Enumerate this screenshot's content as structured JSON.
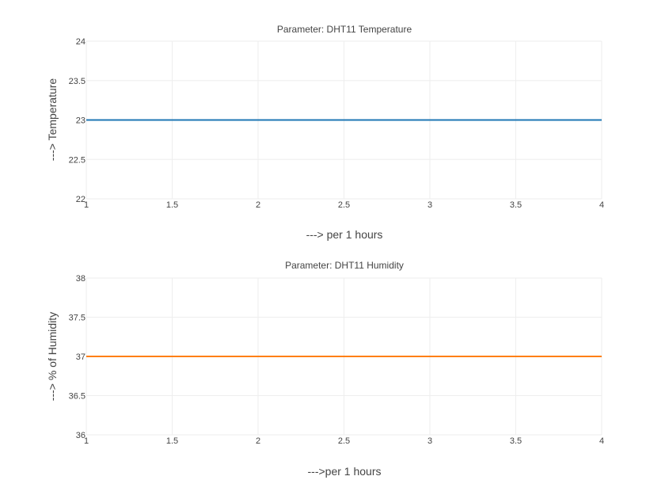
{
  "chart_data": [
    {
      "type": "line",
      "title": "Parameter: DHT11 Temperature",
      "xlabel": "---> per 1 hours",
      "ylabel": "---> Temperature",
      "xlim": [
        1,
        4
      ],
      "ylim": [
        22,
        24
      ],
      "x_ticks": [
        "1",
        "1.5",
        "2",
        "2.5",
        "3",
        "3.5",
        "4"
      ],
      "y_ticks": [
        "22",
        "22.5",
        "23",
        "23.5",
        "24"
      ],
      "grid": true,
      "series": [
        {
          "x": [
            1,
            2,
            3,
            4
          ],
          "y": [
            23,
            23,
            23,
            23
          ],
          "color": "#1f77b4"
        }
      ]
    },
    {
      "type": "line",
      "title": "Parameter: DHT11 Humidity",
      "xlabel": "--->per 1 hours",
      "ylabel": "---> % of Humidity",
      "xlim": [
        1,
        4
      ],
      "ylim": [
        36,
        38
      ],
      "x_ticks": [
        "1",
        "1.5",
        "2",
        "2.5",
        "3",
        "3.5",
        "4"
      ],
      "y_ticks": [
        "36",
        "36.5",
        "37",
        "37.5",
        "38"
      ],
      "grid": true,
      "series": [
        {
          "x": [
            1,
            2,
            3,
            4
          ],
          "y": [
            37,
            37,
            37,
            37
          ],
          "color": "#ff7f0e"
        }
      ]
    }
  ]
}
